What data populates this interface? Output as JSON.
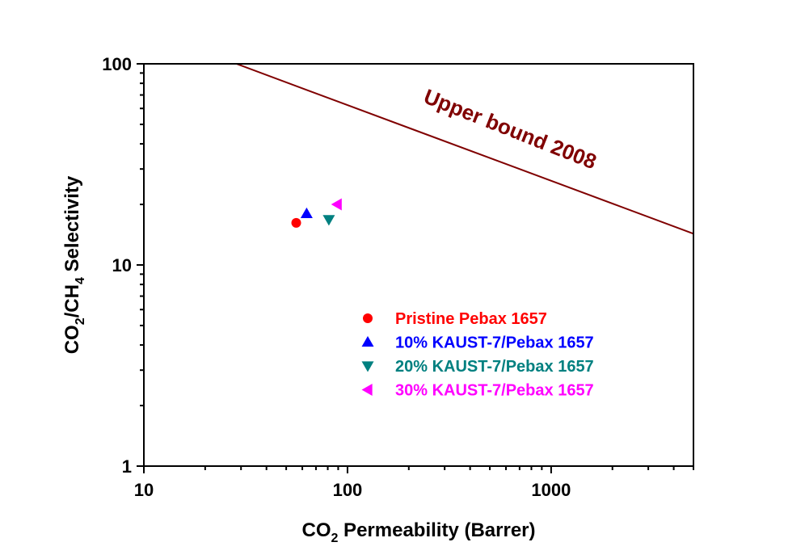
{
  "chart_data": {
    "type": "scatter",
    "xscale": "log",
    "yscale": "log",
    "xlim": [
      10,
      5000
    ],
    "ylim": [
      1,
      100
    ],
    "x_major_ticks": [
      10,
      100,
      1000
    ],
    "x_tick_labels": [
      "10",
      "100",
      "1000"
    ],
    "y_major_ticks": [
      1,
      10,
      100
    ],
    "y_tick_labels": [
      "1",
      "10",
      "100"
    ],
    "xlabel": {
      "pre": "CO",
      "sub": "2",
      "post": " Permeability (Barrer)"
    },
    "ylabel": {
      "p1": "CO",
      "s1": "2",
      "p2": "/CH",
      "s2": "4",
      "p3": " Selectivity"
    },
    "series": [
      {
        "name": "Pristine Pebax 1657",
        "marker": "circle",
        "color": "#ff0000",
        "x": [
          56
        ],
        "y": [
          16.2
        ]
      },
      {
        "name": "10% KAUST-7/Pebax 1657",
        "marker": "triangle-up",
        "color": "#0000ff",
        "x": [
          63
        ],
        "y": [
          18.0
        ]
      },
      {
        "name": "20% KAUST-7/Pebax 1657",
        "marker": "triangle-down",
        "color": "#008080",
        "x": [
          81
        ],
        "y": [
          16.8
        ]
      },
      {
        "name": "30% KAUST-7/Pebax 1657",
        "marker": "triangle-left",
        "color": "#ff00ff",
        "x": [
          89
        ],
        "y": [
          20.0
        ]
      }
    ],
    "upper_bound": {
      "label": "Upper bound 2008",
      "color": "#800000",
      "x": [
        28.5,
        5000
      ],
      "y": [
        100,
        14.3
      ]
    },
    "legend_position": "lower-right"
  }
}
